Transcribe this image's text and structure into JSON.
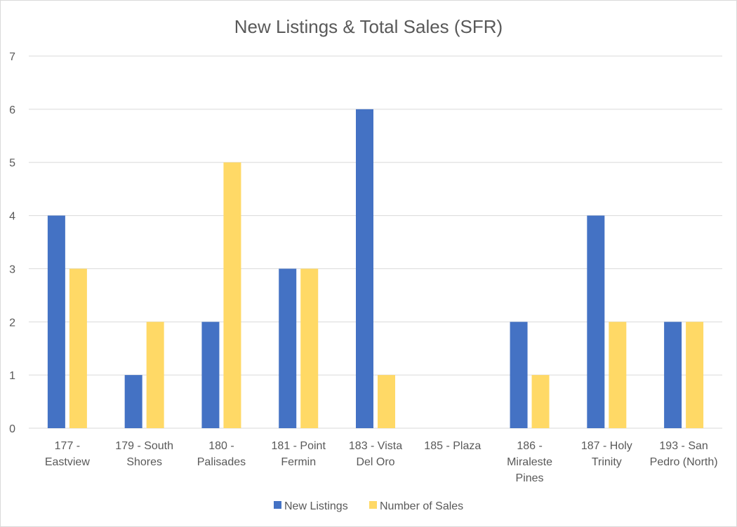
{
  "chart_data": {
    "type": "bar",
    "title": "New Listings & Total Sales (SFR)",
    "categories": [
      "177 - Eastview",
      "179 - South Shores",
      "180 - Palisades",
      "181 - Point Fermin",
      "183 - Vista Del Oro",
      "185 - Plaza",
      "186 - Miraleste Pines",
      "187 - Holy Trinity",
      "193 - San Pedro (North)"
    ],
    "category_label_lines": [
      [
        "177 -",
        "Eastview"
      ],
      [
        "179 - South",
        "Shores"
      ],
      [
        "180 -",
        "Palisades"
      ],
      [
        "181 - Point",
        "Fermin"
      ],
      [
        "183 - Vista",
        "Del Oro"
      ],
      [
        "185 - Plaza"
      ],
      [
        "186 -",
        "Miraleste",
        "Pines"
      ],
      [
        "187 - Holy",
        "Trinity"
      ],
      [
        "193 - San",
        "Pedro (North)"
      ]
    ],
    "series": [
      {
        "name": "New Listings",
        "color": "#4472C4",
        "values": [
          4,
          1,
          2,
          3,
          6,
          0,
          2,
          4,
          2
        ]
      },
      {
        "name": "Number of Sales",
        "color": "#FFD966",
        "values": [
          3,
          2,
          5,
          3,
          1,
          0,
          1,
          2,
          2
        ]
      }
    ],
    "ylim": [
      0,
      7
    ],
    "yticks": [
      0,
      1,
      2,
      3,
      4,
      5,
      6,
      7
    ],
    "grid": true,
    "legend_position": "bottom",
    "xlabel": "",
    "ylabel": ""
  }
}
